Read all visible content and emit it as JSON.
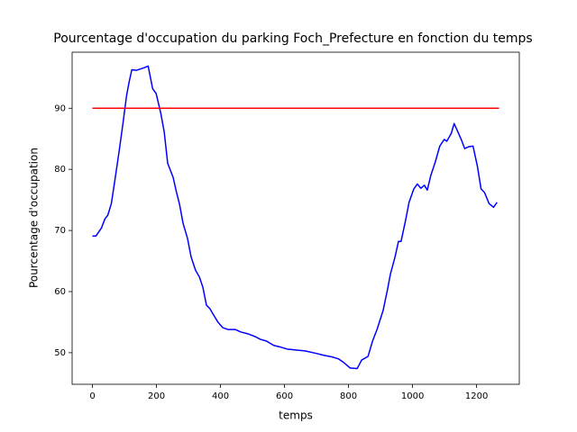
{
  "chart_data": {
    "type": "line",
    "title": "Pourcentage d'occupation du parking Foch_Prefecture en fonction du temps",
    "xlabel": "temps",
    "ylabel": "Pourcentage d'occupation",
    "xlim": [
      -63.5,
      1333.5
    ],
    "ylim": [
      44.83,
      99.17
    ],
    "xticks": [
      0,
      200,
      400,
      600,
      800,
      1000,
      1200
    ],
    "yticks": [
      50,
      60,
      70,
      80,
      90
    ],
    "series": [
      {
        "color": "#0000ff",
        "x": [
          0,
          11,
          28,
          39,
          48,
          59,
          70,
          84,
          95,
          107,
          115,
          123,
          137,
          160,
          174,
          188,
          199,
          213,
          224,
          235,
          252,
          261,
          272,
          283,
          297,
          308,
          322,
          334,
          345,
          356,
          367,
          378,
          392,
          407,
          423,
          446,
          463,
          485,
          510,
          524,
          544,
          566,
          589,
          608,
          642,
          664,
          698,
          721,
          749,
          768,
          785,
          805,
          827,
          841,
          861,
          875,
          889,
          908,
          922,
          931,
          945,
          956,
          964,
          978,
          989,
          1004,
          1015,
          1026,
          1037,
          1046,
          1057,
          1071,
          1085,
          1099,
          1107,
          1121,
          1130,
          1141,
          1152,
          1163,
          1175,
          1189,
          1203,
          1214,
          1225,
          1239,
          1253,
          1264
        ],
        "values": [
          69.1,
          69.1,
          70.4,
          71.9,
          72.5,
          74.4,
          78.2,
          83.2,
          87.4,
          92.2,
          94.4,
          96.3,
          96.2,
          96.6,
          96.9,
          93.2,
          92.4,
          89.3,
          86.2,
          81.0,
          78.7,
          76.6,
          74.3,
          71.2,
          68.7,
          65.7,
          63.5,
          62.4,
          60.7,
          57.8,
          57.2,
          56.2,
          55.0,
          54.1,
          53.8,
          53.8,
          53.4,
          53.1,
          52.6,
          52.2,
          51.9,
          51.2,
          50.9,
          50.6,
          50.4,
          50.3,
          49.9,
          49.6,
          49.3,
          49.0,
          48.4,
          47.5,
          47.4,
          48.8,
          49.4,
          51.9,
          53.8,
          56.9,
          60.4,
          62.9,
          65.6,
          68.2,
          68.2,
          71.6,
          74.6,
          76.8,
          77.6,
          76.9,
          77.4,
          76.6,
          79.0,
          81.2,
          83.8,
          84.9,
          84.6,
          85.9,
          87.5,
          86.2,
          84.9,
          83.4,
          83.7,
          83.8,
          80.4,
          76.8,
          76.2,
          74.4,
          73.8,
          74.6
        ]
      },
      {
        "color": "#ff0000",
        "x": [
          0,
          1270
        ],
        "values": [
          90,
          90
        ]
      }
    ]
  }
}
